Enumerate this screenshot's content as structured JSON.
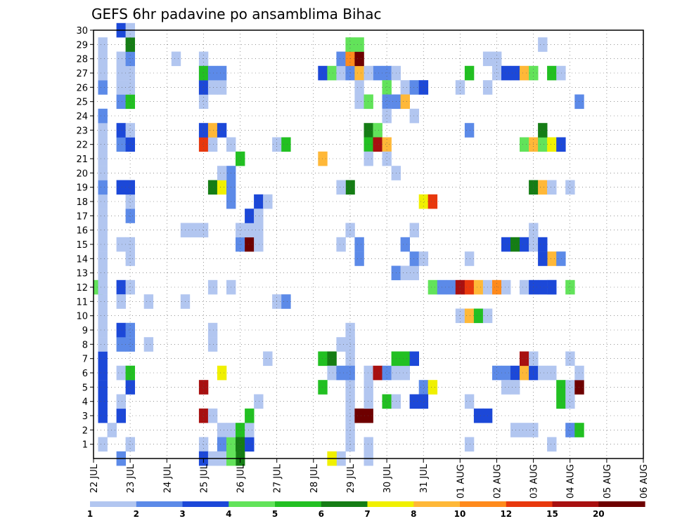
{
  "chart_data": {
    "type": "heatmap",
    "title": "GEFS 6hr padavine po ansamblima Bihac",
    "x_tick_labels": [
      "22 JUL",
      "23 JUL",
      "24 JUL",
      "25 JUL",
      "26 JUL",
      "27 JUL",
      "28 JUL",
      "29 JUL",
      "30 JUL",
      "31 JUL",
      "01 AUG",
      "02 AUG",
      "03 AUG",
      "04 AUG",
      "05 AUG",
      "06 AUG"
    ],
    "y_tick_labels": [
      "1",
      "2",
      "3",
      "4",
      "5",
      "6",
      "7",
      "8",
      "9",
      "10",
      "11",
      "12",
      "13",
      "14",
      "15",
      "16",
      "17",
      "18",
      "19",
      "20",
      "21",
      "22",
      "23",
      "24",
      "25",
      "26",
      "27",
      "28",
      "29",
      "30"
    ],
    "ylim": [
      0,
      30
    ],
    "grid": true,
    "colorbar": {
      "labels": [
        "1",
        "2",
        "3",
        "4",
        "5",
        "6",
        "7",
        "8",
        "10",
        "12",
        "15",
        "20"
      ],
      "colors": [
        "#b2c6f0",
        "#5c8ae8",
        "#1c48d8",
        "#62e35a",
        "#22c022",
        "#157d15",
        "#f0f000",
        "#ffb838",
        "#ff8a1c",
        "#e8380d",
        "#a81010",
        "#6e0000"
      ]
    },
    "cells": [
      [
        0.5,
        1,
        0
      ],
      [
        1.5,
        2,
        0
      ],
      [
        0.5,
        3,
        2
      ],
      [
        0.5,
        4,
        2
      ],
      [
        0.5,
        5,
        2
      ],
      [
        0.5,
        6,
        2
      ],
      [
        0.5,
        7,
        2
      ],
      [
        0.5,
        8,
        0
      ],
      [
        0.5,
        9,
        0
      ],
      [
        0.5,
        10,
        0
      ],
      [
        0.5,
        11,
        0
      ],
      [
        0,
        12,
        3
      ],
      [
        0.5,
        12,
        0
      ],
      [
        0.5,
        13,
        0
      ],
      [
        0.5,
        14,
        0
      ],
      [
        0.5,
        15,
        0
      ],
      [
        0.5,
        16,
        0
      ],
      [
        0.5,
        17,
        0
      ],
      [
        0.5,
        18,
        0
      ],
      [
        0.5,
        19,
        1
      ],
      [
        0.5,
        20,
        0
      ],
      [
        0.5,
        21,
        0
      ],
      [
        0.5,
        22,
        0
      ],
      [
        0.5,
        23,
        0
      ],
      [
        0.5,
        24,
        1
      ],
      [
        0.5,
        26,
        1
      ],
      [
        0.5,
        27,
        0
      ],
      [
        0.5,
        28,
        0
      ],
      [
        0.5,
        29,
        0
      ],
      [
        2.5,
        0,
        1
      ],
      [
        3.5,
        1,
        0
      ],
      [
        3.5,
        6,
        0
      ],
      [
        2.5,
        12,
        2
      ],
      [
        3.5,
        12,
        0
      ],
      [
        3.5,
        14,
        0
      ],
      [
        2.5,
        15,
        0
      ],
      [
        3.5,
        15,
        0
      ],
      [
        3.5,
        17,
        1
      ],
      [
        3.5,
        18,
        0
      ],
      [
        2.5,
        19,
        2
      ],
      [
        3.5,
        19,
        2
      ],
      [
        2.5,
        22,
        1
      ],
      [
        3.5,
        22,
        2
      ],
      [
        2.5,
        23,
        2
      ],
      [
        3.5,
        23,
        0
      ],
      [
        2.5,
        25,
        1
      ],
      [
        3.5,
        25,
        4
      ],
      [
        2.5,
        26,
        0
      ],
      [
        3.5,
        26,
        0
      ],
      [
        2.5,
        27,
        0
      ],
      [
        3.5,
        27,
        0
      ],
      [
        2.5,
        28,
        0
      ],
      [
        3.5,
        28,
        1
      ],
      [
        3.5,
        29,
        5
      ],
      [
        2.5,
        30,
        2
      ],
      [
        3.5,
        30,
        0
      ],
      [
        2.5,
        3,
        2
      ],
      [
        2.5,
        4,
        0
      ],
      [
        3.5,
        5,
        2
      ],
      [
        2.5,
        8,
        1
      ],
      [
        3.5,
        8,
        1
      ],
      [
        2.5,
        9,
        2
      ],
      [
        3.5,
        9,
        1
      ],
      [
        2.5,
        11,
        0
      ],
      [
        2.5,
        6,
        0
      ],
      [
        3.5,
        6,
        4
      ],
      [
        5.5,
        8,
        0
      ],
      [
        5.5,
        11,
        0
      ],
      [
        9.5,
        11,
        0
      ],
      [
        9.5,
        16,
        0
      ],
      [
        10.5,
        16,
        0
      ],
      [
        11.5,
        16,
        0
      ],
      [
        8.5,
        28,
        0
      ],
      [
        11.5,
        27,
        0
      ],
      [
        11.5,
        28,
        0
      ],
      [
        11.5,
        26,
        0
      ],
      [
        11.5,
        25,
        0
      ],
      [
        11.5,
        1,
        0
      ],
      [
        11.5,
        0,
        2
      ],
      [
        12.5,
        0,
        0
      ],
      [
        13.5,
        2,
        0
      ],
      [
        13.5,
        1,
        1
      ],
      [
        13.5,
        0,
        0
      ],
      [
        14.5,
        1,
        3
      ],
      [
        14.5,
        2,
        0
      ],
      [
        15.5,
        2,
        4
      ],
      [
        15.5,
        1,
        5
      ],
      [
        15.5,
        0,
        5
      ],
      [
        14.5,
        0,
        3
      ],
      [
        16.5,
        1,
        2
      ],
      [
        16.5,
        2,
        0
      ],
      [
        11.5,
        3,
        10
      ],
      [
        12.5,
        3,
        0
      ],
      [
        11.5,
        5,
        10
      ],
      [
        13.5,
        6,
        6
      ],
      [
        12.5,
        8,
        0
      ],
      [
        12.5,
        9,
        0
      ],
      [
        12.5,
        12,
        0
      ],
      [
        12.5,
        19,
        5
      ],
      [
        13.5,
        19,
        6
      ],
      [
        14.5,
        19,
        1
      ],
      [
        14.5,
        20,
        1
      ],
      [
        13.5,
        20,
        0
      ],
      [
        15.5,
        21,
        4
      ],
      [
        14.5,
        18,
        1
      ],
      [
        11.5,
        22,
        9
      ],
      [
        12.5,
        22,
        0
      ],
      [
        11.5,
        23,
        2
      ],
      [
        12.5,
        23,
        7
      ],
      [
        13.5,
        23,
        2
      ],
      [
        11.5,
        26,
        2
      ],
      [
        12.5,
        26,
        0
      ],
      [
        13.5,
        26,
        0
      ],
      [
        11.5,
        27,
        4
      ],
      [
        12.5,
        27,
        1
      ],
      [
        13.5,
        27,
        1
      ],
      [
        15.5,
        15,
        1
      ],
      [
        16.5,
        15,
        11
      ],
      [
        15.5,
        16,
        0
      ],
      [
        16.5,
        16,
        0
      ],
      [
        16.5,
        17,
        2
      ],
      [
        17.5,
        17,
        1
      ],
      [
        17.5,
        18,
        2
      ],
      [
        18.5,
        18,
        0
      ],
      [
        17.5,
        17,
        0
      ],
      [
        17.5,
        15,
        0
      ],
      [
        16.5,
        3,
        4
      ],
      [
        17.5,
        4,
        0
      ],
      [
        17.5,
        16,
        0
      ],
      [
        14.5,
        12,
        0
      ],
      [
        14.5,
        22,
        0
      ],
      [
        19.5,
        22,
        0
      ],
      [
        20.5,
        22,
        4
      ],
      [
        19.5,
        11,
        0
      ],
      [
        20.5,
        11,
        1
      ],
      [
        18.5,
        7,
        0
      ],
      [
        27.5,
        1,
        0
      ],
      [
        27.5,
        2,
        0
      ],
      [
        27.5,
        3,
        0
      ],
      [
        27.5,
        4,
        0
      ],
      [
        27.5,
        5,
        0
      ],
      [
        27.5,
        6,
        0
      ],
      [
        27.5,
        7,
        0
      ],
      [
        27.5,
        8,
        0
      ],
      [
        24.5,
        27,
        2
      ],
      [
        25.5,
        27,
        3
      ],
      [
        26.5,
        27,
        0
      ],
      [
        27.5,
        27,
        1
      ],
      [
        28.5,
        27,
        7
      ],
      [
        26.5,
        28,
        1
      ],
      [
        27.5,
        28,
        8
      ],
      [
        28.5,
        28,
        11
      ],
      [
        27.5,
        29,
        3
      ],
      [
        28.5,
        29,
        3
      ],
      [
        28.5,
        26,
        0
      ],
      [
        28.5,
        25,
        0
      ],
      [
        29.5,
        25,
        3
      ],
      [
        29.5,
        23,
        5
      ],
      [
        30.5,
        23,
        3
      ],
      [
        29.5,
        22,
        4
      ],
      [
        30.5,
        22,
        10
      ],
      [
        31.5,
        22,
        7
      ],
      [
        29.5,
        21,
        0
      ],
      [
        31.5,
        21,
        0
      ],
      [
        24.5,
        21,
        7
      ],
      [
        27.5,
        19,
        5
      ],
      [
        26.5,
        19,
        0
      ],
      [
        26.5,
        15,
        0
      ],
      [
        28.5,
        15,
        1
      ],
      [
        28.5,
        14,
        1
      ],
      [
        27.5,
        16,
        0
      ],
      [
        30.5,
        27,
        1
      ],
      [
        31.5,
        27,
        1
      ],
      [
        32.5,
        27,
        0
      ],
      [
        29.5,
        27,
        0
      ],
      [
        31.5,
        26,
        3
      ],
      [
        33.5,
        26,
        0
      ],
      [
        34.5,
        26,
        1
      ],
      [
        35.5,
        26,
        2
      ],
      [
        31.5,
        25,
        1
      ],
      [
        32.5,
        25,
        1
      ],
      [
        33.5,
        25,
        7
      ],
      [
        31.5,
        24,
        0
      ],
      [
        32.5,
        13,
        1
      ],
      [
        33.5,
        13,
        0
      ],
      [
        34.5,
        13,
        0
      ],
      [
        29.5,
        0,
        0
      ],
      [
        28.5,
        3,
        11
      ],
      [
        29.5,
        3,
        11
      ],
      [
        29.5,
        4,
        0
      ],
      [
        31.5,
        4,
        4
      ],
      [
        32.5,
        4,
        0
      ],
      [
        34.5,
        4,
        2
      ],
      [
        24.5,
        7,
        4
      ],
      [
        25.5,
        7,
        5
      ],
      [
        25.5,
        6,
        0
      ],
      [
        26.5,
        6,
        1
      ],
      [
        27.5,
        6,
        1
      ],
      [
        29.5,
        6,
        0
      ],
      [
        30.5,
        6,
        10
      ],
      [
        31.5,
        6,
        1
      ],
      [
        32.5,
        6,
        0
      ],
      [
        33.5,
        6,
        0
      ],
      [
        32.5,
        7,
        4
      ],
      [
        33.5,
        7,
        4
      ],
      [
        34.5,
        7,
        2
      ],
      [
        24.5,
        5,
        4
      ],
      [
        26.5,
        0,
        0
      ],
      [
        25.5,
        0,
        6
      ],
      [
        29.5,
        5,
        0
      ],
      [
        29.5,
        1,
        0
      ],
      [
        27.5,
        9,
        0
      ],
      [
        27.5,
        8,
        0
      ],
      [
        26.5,
        8,
        0
      ],
      [
        33.5,
        15,
        1
      ],
      [
        34.5,
        16,
        0
      ],
      [
        34.5,
        14,
        1
      ],
      [
        35.5,
        14,
        0
      ],
      [
        35.5,
        18,
        6
      ],
      [
        36.5,
        18,
        9
      ],
      [
        32.5,
        20,
        0
      ],
      [
        34.5,
        24,
        0
      ],
      [
        35.5,
        5,
        1
      ],
      [
        36.5,
        5,
        6
      ],
      [
        36.5,
        12,
        3
      ],
      [
        37.5,
        12,
        1
      ],
      [
        38.5,
        12,
        1
      ],
      [
        39.5,
        12,
        10
      ],
      [
        40.5,
        12,
        9
      ],
      [
        41.5,
        12,
        7
      ],
      [
        42.5,
        12,
        0
      ],
      [
        43.5,
        12,
        8
      ],
      [
        44.5,
        12,
        0
      ],
      [
        39.5,
        10,
        0
      ],
      [
        40.5,
        10,
        7
      ],
      [
        41.5,
        10,
        4
      ],
      [
        42.5,
        10,
        0
      ],
      [
        40.5,
        1,
        0
      ],
      [
        40.5,
        4,
        0
      ],
      [
        40.5,
        14,
        0
      ],
      [
        40.5,
        23,
        1
      ],
      [
        39.5,
        26,
        0
      ],
      [
        42.5,
        26,
        0
      ],
      [
        42.5,
        28,
        0
      ],
      [
        43.5,
        28,
        0
      ],
      [
        40.5,
        27,
        4
      ],
      [
        43.5,
        27,
        0
      ],
      [
        44.5,
        27,
        2
      ],
      [
        45.5,
        27,
        2
      ],
      [
        46.5,
        27,
        7
      ],
      [
        47.5,
        27,
        3
      ],
      [
        49.5,
        27,
        4
      ],
      [
        50.5,
        27,
        0
      ],
      [
        41.5,
        3,
        2
      ],
      [
        42.5,
        3,
        2
      ],
      [
        35.5,
        4,
        2
      ],
      [
        43.5,
        6,
        1
      ],
      [
        44.5,
        6,
        1
      ],
      [
        45.5,
        6,
        2
      ],
      [
        46.5,
        6,
        7
      ],
      [
        47.5,
        6,
        2
      ],
      [
        48.5,
        6,
        0
      ],
      [
        49.5,
        6,
        0
      ],
      [
        46.5,
        7,
        10
      ],
      [
        47.5,
        7,
        0
      ],
      [
        44.5,
        5,
        0
      ],
      [
        45.5,
        5,
        0
      ],
      [
        45.5,
        2,
        0
      ],
      [
        46.5,
        2,
        0
      ],
      [
        47.5,
        2,
        0
      ],
      [
        49.5,
        1,
        0
      ],
      [
        51.5,
        2,
        1
      ],
      [
        52.5,
        2,
        4
      ],
      [
        44.5,
        15,
        2
      ],
      [
        45.5,
        15,
        5
      ],
      [
        46.5,
        15,
        2
      ],
      [
        47.5,
        15,
        0
      ],
      [
        47.5,
        16,
        0
      ],
      [
        46.5,
        12,
        0
      ],
      [
        47.5,
        12,
        2
      ],
      [
        48.5,
        12,
        2
      ],
      [
        49.5,
        12,
        1
      ],
      [
        49.5,
        12,
        2
      ],
      [
        51.5,
        12,
        3
      ],
      [
        48.5,
        15,
        2
      ],
      [
        49.5,
        14,
        7
      ],
      [
        50.5,
        14,
        1
      ],
      [
        48.5,
        14,
        2
      ],
      [
        46.5,
        22,
        3
      ],
      [
        47.5,
        22,
        7
      ],
      [
        48.5,
        22,
        3
      ],
      [
        49.5,
        22,
        6
      ],
      [
        50.5,
        22,
        2
      ],
      [
        47.5,
        19,
        5
      ],
      [
        48.5,
        19,
        7
      ],
      [
        49.5,
        19,
        0
      ],
      [
        51.5,
        19,
        0
      ],
      [
        48.5,
        23,
        5
      ],
      [
        48.5,
        29,
        0
      ],
      [
        50.5,
        5,
        4
      ],
      [
        51.5,
        5,
        0
      ],
      [
        50.5,
        4,
        4
      ],
      [
        51.5,
        4,
        0
      ],
      [
        52.5,
        5,
        11
      ],
      [
        52.5,
        6,
        0
      ],
      [
        51.5,
        7,
        0
      ],
      [
        52.5,
        25,
        1
      ]
    ]
  }
}
